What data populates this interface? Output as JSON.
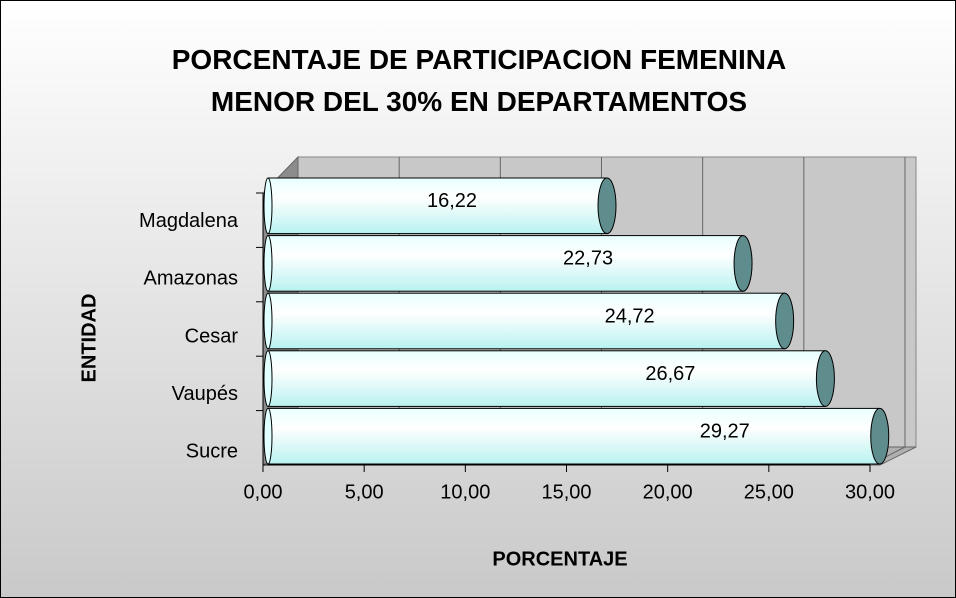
{
  "chart_data": {
    "type": "bar",
    "orientation": "horizontal",
    "title": "PORCENTAJE DE PARTICIPACION FEMENINA MENOR DEL 30% EN DEPARTAMENTOS",
    "x_label": "PORCENTAJE",
    "y_label": "ENTIDAD",
    "categories": [
      "Magdalena",
      "Amazonas",
      "Cesar",
      "Vaupés",
      "Sucre"
    ],
    "values": [
      16.22,
      22.73,
      24.72,
      26.67,
      29.27
    ],
    "value_labels": [
      "16,22",
      "22,73",
      "24,72",
      "26,67",
      "29,27"
    ],
    "color": "#b8f2f0",
    "xlim": [
      0,
      30
    ],
    "xticks": [
      {
        "value": 0,
        "label": "0,00"
      },
      {
        "value": 5,
        "label": "5,00"
      },
      {
        "value": 10,
        "label": "10,00"
      },
      {
        "value": 15,
        "label": "15,00"
      },
      {
        "value": 20,
        "label": "20,00"
      },
      {
        "value": 25,
        "label": "25,00"
      },
      {
        "value": 30,
        "label": "30,00"
      }
    ],
    "grid": true
  }
}
